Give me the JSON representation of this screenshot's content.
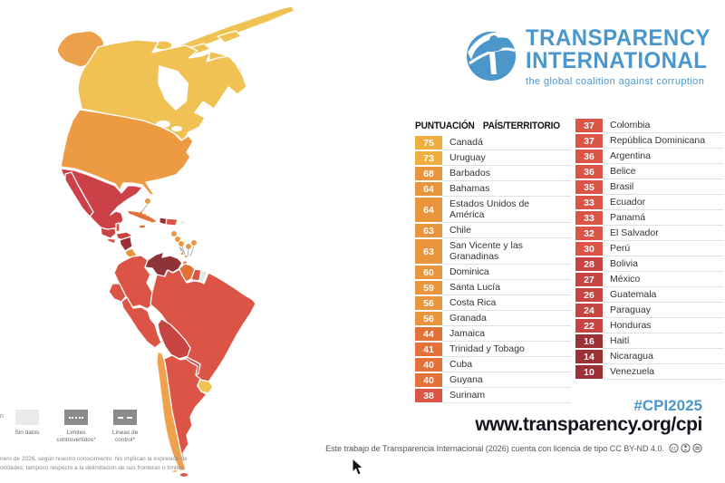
{
  "logo": {
    "line1": "TRANSPARENCY",
    "line2": "INTERNATIONAL",
    "tagline": "the global coalition against corruption"
  },
  "table": {
    "header_score": "PUNTUACIÓN",
    "header_country": "PAÍS/TERRITORIO",
    "col1": [
      {
        "score": "75",
        "name": "Canadá",
        "tier": "t70"
      },
      {
        "score": "73",
        "name": "Uruguay",
        "tier": "t70"
      },
      {
        "score": "68",
        "name": "Barbados",
        "tier": "t60"
      },
      {
        "score": "64",
        "name": "Bahamas",
        "tier": "t60"
      },
      {
        "score": "64",
        "name": "Estados Unidos de América",
        "tier": "t60"
      },
      {
        "score": "63",
        "name": "Chile",
        "tier": "t60"
      },
      {
        "score": "63",
        "name": "San Vicente y las Granadinas",
        "tier": "t60"
      },
      {
        "score": "60",
        "name": "Dominica",
        "tier": "t60"
      },
      {
        "score": "59",
        "name": "Santa Lucía",
        "tier": "t60"
      },
      {
        "score": "56",
        "name": "Costa Rica",
        "tier": "t60"
      },
      {
        "score": "56",
        "name": "Granada",
        "tier": "t60"
      },
      {
        "score": "44",
        "name": "Jamaica",
        "tier": "t40"
      },
      {
        "score": "41",
        "name": "Trinidad y Tobago",
        "tier": "t40"
      },
      {
        "score": "40",
        "name": "Cuba",
        "tier": "t40"
      },
      {
        "score": "40",
        "name": "Guyana",
        "tier": "t40"
      },
      {
        "score": "38",
        "name": "Surinam",
        "tier": "t30"
      }
    ],
    "col2": [
      {
        "score": "37",
        "name": "Colombia",
        "tier": "t30"
      },
      {
        "score": "37",
        "name": "República Dominicana",
        "tier": "t30"
      },
      {
        "score": "36",
        "name": "Argentina",
        "tier": "t30"
      },
      {
        "score": "36",
        "name": "Belice",
        "tier": "t30"
      },
      {
        "score": "35",
        "name": "Brasil",
        "tier": "t30"
      },
      {
        "score": "33",
        "name": "Ecuador",
        "tier": "t30"
      },
      {
        "score": "33",
        "name": "Panamá",
        "tier": "t30"
      },
      {
        "score": "32",
        "name": "El Salvador",
        "tier": "t30"
      },
      {
        "score": "30",
        "name": "Perú",
        "tier": "t30"
      },
      {
        "score": "28",
        "name": "Bolivia",
        "tier": "t20"
      },
      {
        "score": "27",
        "name": "México",
        "tier": "t20"
      },
      {
        "score": "26",
        "name": "Guatemala",
        "tier": "t20"
      },
      {
        "score": "24",
        "name": "Paraguay",
        "tier": "t20"
      },
      {
        "score": "22",
        "name": "Honduras",
        "tier": "t20"
      },
      {
        "score": "16",
        "name": "Haití",
        "tier": "t10"
      },
      {
        "score": "14",
        "name": "Nicaragua",
        "tier": "t10"
      },
      {
        "score": "10",
        "name": "Venezuela",
        "tier": "t10"
      }
    ]
  },
  "footer": {
    "hashtag": "#CPI2025",
    "url": "www.transparency.org/cpi",
    "license": "Este trabajo de Transparencia Internacional (2026) cuenta con licencia de tipo CC BY-ND 4.0."
  },
  "legend": {
    "edge_fragment": "n",
    "items": [
      {
        "label": "Sin datos",
        "style": "nodata"
      },
      {
        "label": "Límites controvertidos*",
        "style": "dotted"
      },
      {
        "label": "Líneas de control*",
        "style": "dashed"
      }
    ]
  },
  "footnote": {
    "line1": "nero de 2026, según nuestro conocimiento. No implican la expresión de",
    "line2": "oridades; tampoco respecto a la delimitación de sus fronteras o límites."
  },
  "colors": {
    "brand_blue": "#4b97cc",
    "dark_text": "#15151f",
    "tiers": {
      "t70": "#efaf40",
      "t60": "#e9953e",
      "t40": "#e2713a",
      "t30": "#dc5445",
      "t20": "#c64441",
      "t10": "#9b3136"
    }
  },
  "map": {
    "fills": {
      "canada": "#f0c254",
      "arctic": "#f0c254",
      "alaska": "#eda04a",
      "usa": "#ed9b43",
      "mexico": "#cc4147",
      "baja": "#cc4147",
      "guatemala": "#c64441",
      "belize": "#dc5445",
      "honduras": "#c64441",
      "el_salvador": "#dc5445",
      "nicaragua": "#9b3136",
      "costa_rica": "#e9953e",
      "panama": "#dc5445",
      "cuba": "#e2713a",
      "jamaica": "#e2713a",
      "haiti": "#9b3136",
      "dominican_republic": "#dc5445",
      "puerto_rico": "#e5e5e2",
      "trinidad": "#e2713a",
      "colombia": "#dc5445",
      "venezuela": "#8e3337",
      "guyana": "#e2713a",
      "suriname": "#dc5445",
      "french_guiana": "#e5e5e2",
      "ecuador": "#dc5445",
      "peru": "#dc5445",
      "brazil": "#dc5445",
      "bolivia": "#c64441",
      "paraguay": "#c64441",
      "chile": "#efa24e",
      "argentina": "#dc5445",
      "uruguay": "#f0c254",
      "small_island": "#e89a40"
    }
  }
}
